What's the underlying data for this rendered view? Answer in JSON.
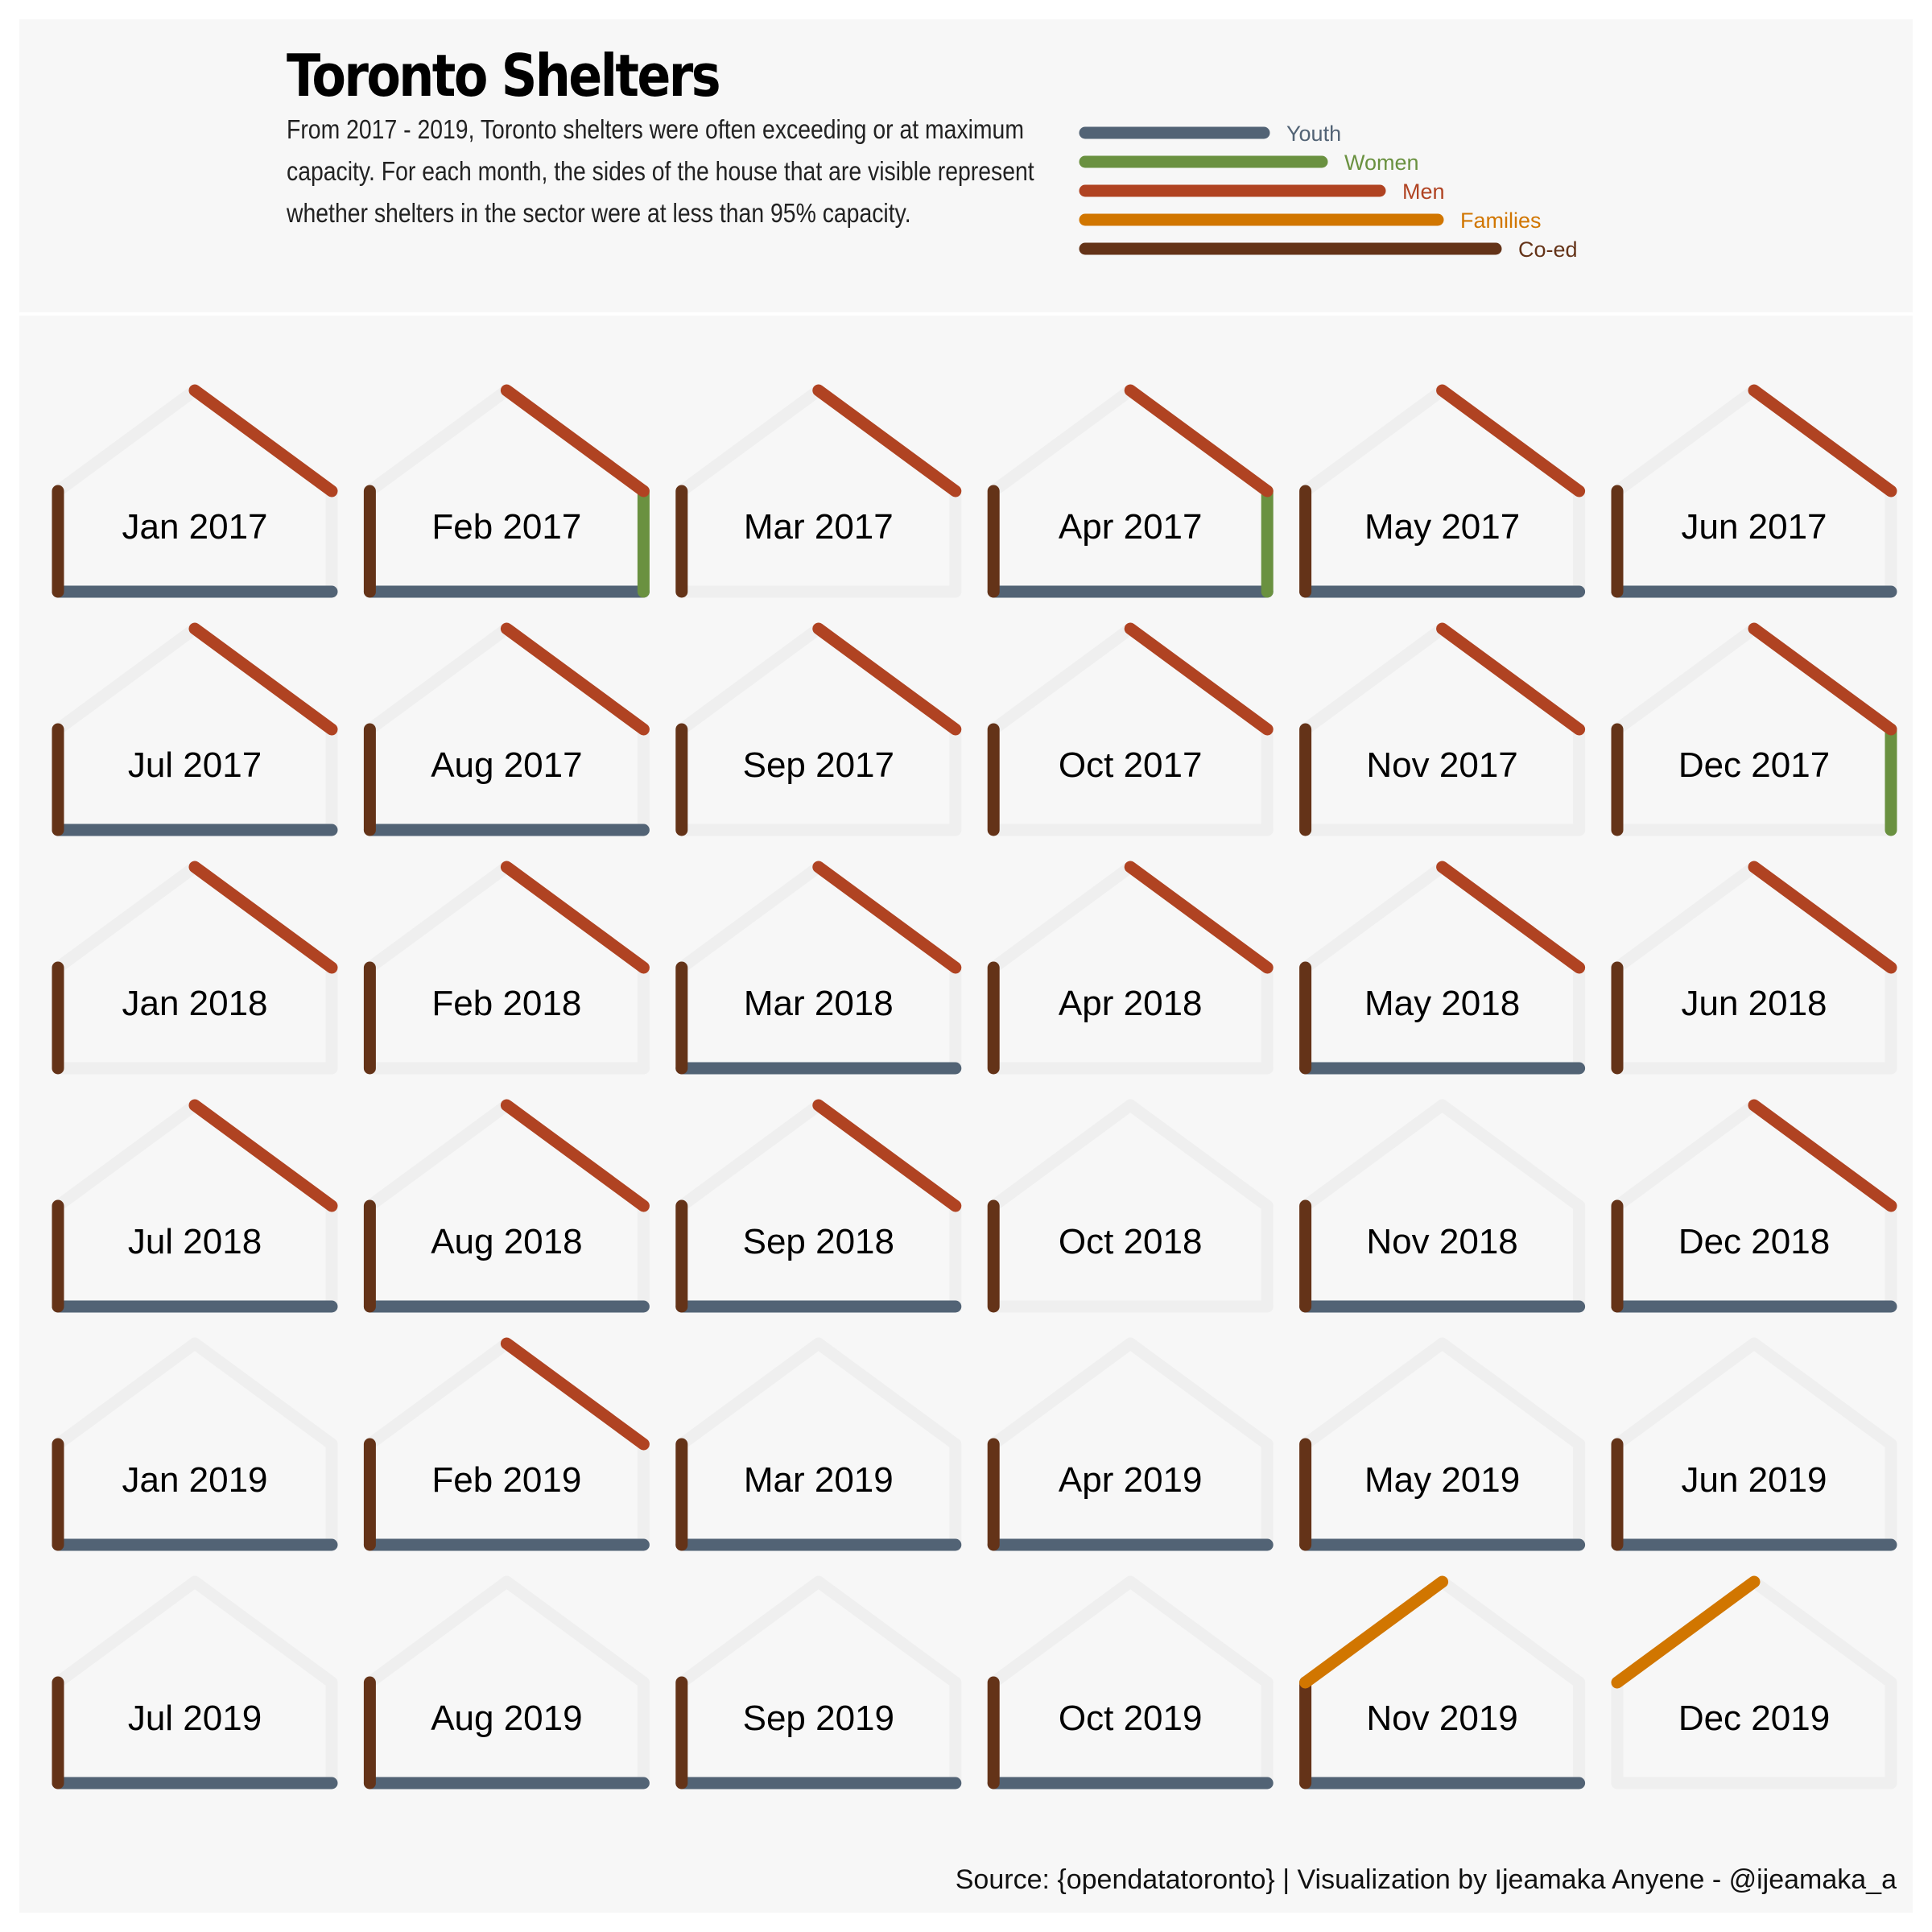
{
  "header": {
    "title": "Toronto Shelters",
    "subtitle": "From 2017 - 2019, Toronto shelters were often exceeding or at maximum capacity. For each month, the sides of the house that are visible represent whether shelters in the sector were at less than 95% capacity."
  },
  "footer": {
    "source": "Source: {opendatatoronto} | Visualization by Ijeamaka Anyene - @ijeamaka_a"
  },
  "colors": {
    "Youth": "#526375",
    "Women": "#6a9140",
    "Men": "#b04322",
    "Families": "#d17600",
    "Co-ed": "#643318",
    "inactive": "#efefef"
  },
  "chart_data": {
    "type": "small-multiples",
    "title": "Toronto Shelters",
    "threshold": "less than 95% capacity",
    "legend": {
      "placement": "top-right",
      "entries": [
        "Youth",
        "Women",
        "Men",
        "Families",
        "Co-ed"
      ],
      "sector_side": {
        "Youth": "floor",
        "Women": "right wall",
        "Men": "right roof",
        "Families": "left roof",
        "Co-ed": "left wall"
      }
    },
    "months": [
      {
        "label": "Jan 2017",
        "below_95": [
          "Co-ed",
          "Men",
          "Youth"
        ]
      },
      {
        "label": "Feb 2017",
        "below_95": [
          "Co-ed",
          "Men",
          "Women",
          "Youth"
        ]
      },
      {
        "label": "Mar 2017",
        "below_95": [
          "Co-ed",
          "Men"
        ]
      },
      {
        "label": "Apr 2017",
        "below_95": [
          "Co-ed",
          "Men",
          "Women",
          "Youth"
        ]
      },
      {
        "label": "May 2017",
        "below_95": [
          "Co-ed",
          "Men",
          "Youth"
        ]
      },
      {
        "label": "Jun 2017",
        "below_95": [
          "Co-ed",
          "Men",
          "Youth"
        ]
      },
      {
        "label": "Jul 2017",
        "below_95": [
          "Co-ed",
          "Men",
          "Youth"
        ]
      },
      {
        "label": "Aug 2017",
        "below_95": [
          "Co-ed",
          "Men",
          "Youth"
        ]
      },
      {
        "label": "Sep 2017",
        "below_95": [
          "Co-ed",
          "Men"
        ]
      },
      {
        "label": "Oct 2017",
        "below_95": [
          "Co-ed",
          "Men"
        ]
      },
      {
        "label": "Nov 2017",
        "below_95": [
          "Co-ed",
          "Men"
        ]
      },
      {
        "label": "Dec 2017",
        "below_95": [
          "Co-ed",
          "Men",
          "Women"
        ]
      },
      {
        "label": "Jan 2018",
        "below_95": [
          "Co-ed",
          "Men"
        ]
      },
      {
        "label": "Feb 2018",
        "below_95": [
          "Co-ed",
          "Men"
        ]
      },
      {
        "label": "Mar 2018",
        "below_95": [
          "Co-ed",
          "Men",
          "Youth"
        ]
      },
      {
        "label": "Apr 2018",
        "below_95": [
          "Co-ed",
          "Men"
        ]
      },
      {
        "label": "May 2018",
        "below_95": [
          "Co-ed",
          "Men",
          "Youth"
        ]
      },
      {
        "label": "Jun 2018",
        "below_95": [
          "Co-ed",
          "Men"
        ]
      },
      {
        "label": "Jul 2018",
        "below_95": [
          "Co-ed",
          "Men",
          "Youth"
        ]
      },
      {
        "label": "Aug 2018",
        "below_95": [
          "Co-ed",
          "Men",
          "Youth"
        ]
      },
      {
        "label": "Sep 2018",
        "below_95": [
          "Co-ed",
          "Men",
          "Youth"
        ]
      },
      {
        "label": "Oct 2018",
        "below_95": [
          "Co-ed"
        ]
      },
      {
        "label": "Nov 2018",
        "below_95": [
          "Co-ed",
          "Youth"
        ]
      },
      {
        "label": "Dec 2018",
        "below_95": [
          "Co-ed",
          "Men",
          "Youth"
        ]
      },
      {
        "label": "Jan 2019",
        "below_95": [
          "Co-ed",
          "Youth"
        ]
      },
      {
        "label": "Feb 2019",
        "below_95": [
          "Co-ed",
          "Men",
          "Youth"
        ]
      },
      {
        "label": "Mar 2019",
        "below_95": [
          "Co-ed",
          "Youth"
        ]
      },
      {
        "label": "Apr 2019",
        "below_95": [
          "Co-ed",
          "Youth"
        ]
      },
      {
        "label": "May 2019",
        "below_95": [
          "Co-ed",
          "Youth"
        ]
      },
      {
        "label": "Jun 2019",
        "below_95": [
          "Co-ed",
          "Youth"
        ]
      },
      {
        "label": "Jul 2019",
        "below_95": [
          "Co-ed",
          "Youth"
        ]
      },
      {
        "label": "Aug 2019",
        "below_95": [
          "Co-ed",
          "Youth"
        ]
      },
      {
        "label": "Sep 2019",
        "below_95": [
          "Co-ed",
          "Youth"
        ]
      },
      {
        "label": "Oct 2019",
        "below_95": [
          "Co-ed",
          "Youth"
        ]
      },
      {
        "label": "Nov 2019",
        "below_95": [
          "Families",
          "Co-ed",
          "Youth"
        ]
      },
      {
        "label": "Dec 2019",
        "below_95": [
          "Families"
        ]
      }
    ]
  }
}
